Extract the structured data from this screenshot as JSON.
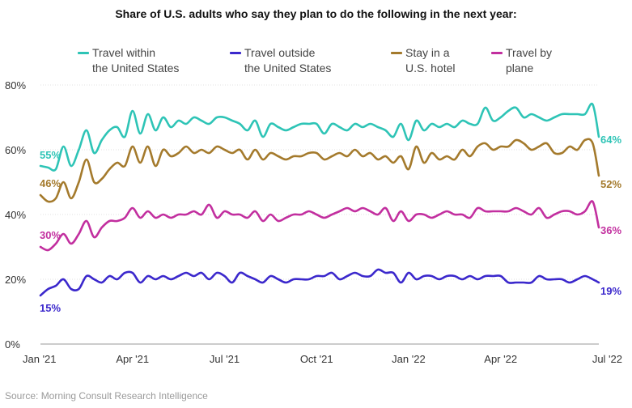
{
  "title": "Share of U.S. adults who say they plan to do the following in the next year:",
  "source": "Source: Morning Consult Research Intelligence",
  "legend": [
    {
      "label": "Travel within\nthe United States",
      "color": "#2ec4b6"
    },
    {
      "label": "Travel outside\nthe United States",
      "color": "#3b28cc"
    },
    {
      "label": "Stay in a\nU.S. hotel",
      "color": "#a47a2c"
    },
    {
      "label": "Travel by\nplane",
      "color": "#c22f9f"
    }
  ],
  "chart_data": {
    "type": "line",
    "title": "Share of U.S. adults who say they plan to do the following in the next year:",
    "ylim": [
      0,
      80
    ],
    "yticks": [
      0,
      20,
      40,
      60,
      80
    ],
    "ytick_labels": [
      "0%",
      "20%",
      "40%",
      "60%",
      "80%"
    ],
    "xlim": [
      0,
      18.2
    ],
    "xticks": [
      0,
      3,
      6,
      9,
      12,
      15,
      18
    ],
    "xtick_labels": [
      "Jan '21",
      "Apr '21",
      "Jul '21",
      "Oct '21",
      "Jan '22",
      "Apr '22",
      "Jul '22"
    ],
    "x_unit": "months since Jan 2021",
    "series": [
      {
        "name": "Travel within the United States",
        "color": "#2ec4b6",
        "start_label": "55%",
        "end_label": "64%",
        "x": [
          0,
          0.25,
          0.5,
          0.75,
          1,
          1.25,
          1.5,
          1.75,
          2,
          2.25,
          2.5,
          2.75,
          3,
          3.25,
          3.5,
          3.75,
          4,
          4.25,
          4.5,
          4.75,
          5,
          5.25,
          5.5,
          5.75,
          6,
          6.25,
          6.5,
          6.75,
          7,
          7.25,
          7.5,
          7.75,
          8,
          8.25,
          8.5,
          8.75,
          9,
          9.25,
          9.5,
          9.75,
          10,
          10.25,
          10.5,
          10.75,
          11,
          11.25,
          11.5,
          11.75,
          12,
          12.25,
          12.5,
          12.75,
          13,
          13.25,
          13.5,
          13.75,
          14,
          14.25,
          14.5,
          14.75,
          15,
          15.25,
          15.5,
          15.75,
          16,
          16.25,
          16.5,
          16.75,
          17,
          17.25,
          17.5,
          17.75,
          18,
          18.2
        ],
        "values": [
          55,
          54.5,
          54,
          61,
          55,
          60,
          66,
          59,
          63,
          66,
          67,
          64,
          72,
          65,
          71,
          66,
          70,
          67,
          69,
          68,
          70,
          69,
          68,
          70,
          70,
          69,
          68,
          66,
          69,
          64,
          68,
          67,
          66,
          67,
          68,
          68,
          68,
          65,
          68,
          67,
          66,
          68,
          67,
          68,
          67,
          66,
          64,
          68,
          63,
          69,
          66,
          68,
          67,
          68,
          67,
          69,
          68,
          68,
          73,
          69,
          70,
          72,
          73,
          70,
          71,
          70,
          69,
          70,
          71,
          71,
          71,
          71,
          74,
          64
        ]
      },
      {
        "name": "Travel outside the United States",
        "color": "#3b28cc",
        "start_label": "15%",
        "end_label": "19%",
        "x": [
          0,
          0.25,
          0.5,
          0.75,
          1,
          1.25,
          1.5,
          1.75,
          2,
          2.25,
          2.5,
          2.75,
          3,
          3.25,
          3.5,
          3.75,
          4,
          4.25,
          4.5,
          4.75,
          5,
          5.25,
          5.5,
          5.75,
          6,
          6.25,
          6.5,
          6.75,
          7,
          7.25,
          7.5,
          7.75,
          8,
          8.25,
          8.5,
          8.75,
          9,
          9.25,
          9.5,
          9.75,
          10,
          10.25,
          10.5,
          10.75,
          11,
          11.25,
          11.5,
          11.75,
          12,
          12.25,
          12.5,
          12.75,
          13,
          13.25,
          13.5,
          13.75,
          14,
          14.25,
          14.5,
          14.75,
          15,
          15.25,
          15.5,
          15.75,
          16,
          16.25,
          16.5,
          16.75,
          17,
          17.25,
          17.5,
          17.75,
          18,
          18.2
        ],
        "values": [
          15,
          17,
          18,
          20,
          17,
          17,
          21,
          20,
          19,
          21,
          20,
          22,
          22,
          19,
          21,
          20,
          21,
          20,
          21,
          22,
          21,
          22,
          20,
          22,
          21,
          19,
          22,
          21,
          20,
          19,
          21,
          20,
          19,
          20,
          20,
          20,
          21,
          21,
          22,
          20,
          21,
          22,
          21,
          21,
          23,
          22,
          22,
          19,
          22,
          20,
          21,
          21,
          20,
          21,
          21,
          20,
          21,
          20,
          21,
          21,
          21,
          19,
          19,
          19,
          19,
          21,
          20,
          20,
          20,
          19,
          20,
          21,
          20,
          19
        ]
      },
      {
        "name": "Stay in a U.S. hotel",
        "color": "#a47a2c",
        "start_label": "46%",
        "end_label": "52%",
        "x": [
          0,
          0.25,
          0.5,
          0.75,
          1,
          1.25,
          1.5,
          1.75,
          2,
          2.25,
          2.5,
          2.75,
          3,
          3.25,
          3.5,
          3.75,
          4,
          4.25,
          4.5,
          4.75,
          5,
          5.25,
          5.5,
          5.75,
          6,
          6.25,
          6.5,
          6.75,
          7,
          7.25,
          7.5,
          7.75,
          8,
          8.25,
          8.5,
          8.75,
          9,
          9.25,
          9.5,
          9.75,
          10,
          10.25,
          10.5,
          10.75,
          11,
          11.25,
          11.5,
          11.75,
          12,
          12.25,
          12.5,
          12.75,
          13,
          13.25,
          13.5,
          13.75,
          14,
          14.25,
          14.5,
          14.75,
          15,
          15.25,
          15.5,
          15.75,
          16,
          16.25,
          16.5,
          16.75,
          17,
          17.25,
          17.5,
          17.75,
          18,
          18.2
        ],
        "values": [
          46,
          44,
          45,
          50,
          45,
          50,
          57,
          50,
          51,
          54,
          56,
          55,
          61,
          56,
          61,
          55,
          60,
          58,
          59,
          61,
          59,
          60,
          59,
          61,
          60,
          59,
          60,
          57,
          60,
          57,
          59,
          58,
          57,
          58,
          58,
          59,
          59,
          57,
          58,
          59,
          58,
          60,
          58,
          59,
          57,
          58,
          56,
          58,
          54,
          61,
          56,
          59,
          57,
          58,
          57,
          60,
          58,
          61,
          62,
          60,
          61,
          61,
          63,
          62,
          60,
          61,
          62,
          59,
          59,
          61,
          60,
          63,
          62,
          52
        ]
      },
      {
        "name": "Travel by plane",
        "color": "#c22f9f",
        "start_label": "30%",
        "end_label": "36%",
        "x": [
          0,
          0.25,
          0.5,
          0.75,
          1,
          1.25,
          1.5,
          1.75,
          2,
          2.25,
          2.5,
          2.75,
          3,
          3.25,
          3.5,
          3.75,
          4,
          4.25,
          4.5,
          4.75,
          5,
          5.25,
          5.5,
          5.75,
          6,
          6.25,
          6.5,
          6.75,
          7,
          7.25,
          7.5,
          7.75,
          8,
          8.25,
          8.5,
          8.75,
          9,
          9.25,
          9.5,
          9.75,
          10,
          10.25,
          10.5,
          10.75,
          11,
          11.25,
          11.5,
          11.75,
          12,
          12.25,
          12.5,
          12.75,
          13,
          13.25,
          13.5,
          13.75,
          14,
          14.25,
          14.5,
          14.75,
          15,
          15.25,
          15.5,
          15.75,
          16,
          16.25,
          16.5,
          16.75,
          17,
          17.25,
          17.5,
          17.75,
          18,
          18.2
        ],
        "values": [
          30,
          29,
          31,
          34,
          31,
          34,
          38,
          33,
          36,
          38,
          38,
          39,
          42,
          39,
          41,
          39,
          40,
          39,
          40,
          40,
          41,
          40,
          43,
          39,
          41,
          40,
          40,
          39,
          41,
          38,
          40,
          38,
          39,
          40,
          40,
          41,
          40,
          39,
          40,
          41,
          42,
          41,
          42,
          41,
          40,
          42,
          38,
          41,
          38,
          40,
          40,
          39,
          40,
          41,
          40,
          40,
          39,
          42,
          41,
          41,
          41,
          41,
          42,
          41,
          40,
          42,
          39,
          40,
          41,
          41,
          40,
          41,
          44,
          36
        ]
      }
    ]
  }
}
